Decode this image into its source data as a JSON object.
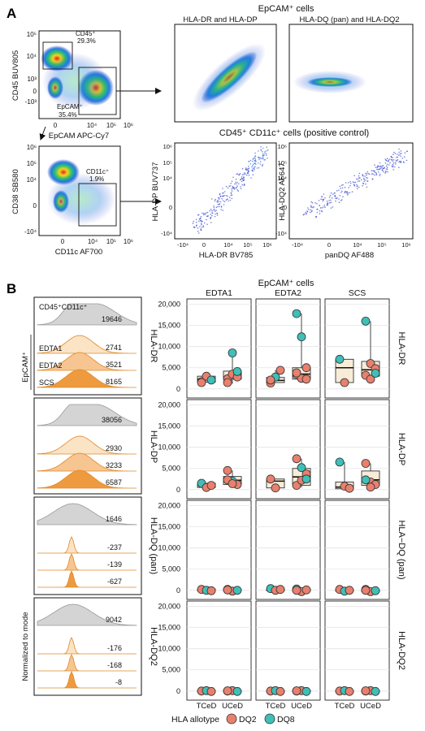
{
  "panels": {
    "A": {
      "letter": "A",
      "gate1": {
        "y_label": "CD45 BUV805",
        "x_label": "EpCAM APC-Cy7",
        "gate_cd45_label": "CD45⁺",
        "gate_cd45_pct": "29.3%",
        "gate_epcam_label": "EpCAM⁺",
        "gate_epcam_pct": "35.4%",
        "y_ticks": [
          "10⁵",
          "10⁴",
          "10³",
          "0",
          "-10³"
        ],
        "x_ticks": [
          "0",
          "10⁴",
          "10⁵",
          "10⁶"
        ]
      },
      "gate2": {
        "y_label": "CD38 SB580",
        "x_label": "CD11c AF700",
        "gate_label": "CD11c⁺",
        "gate_pct": "1.9%",
        "y_ticks": [
          "10⁶",
          "10⁵",
          "10⁴",
          "0",
          "-10⁴"
        ],
        "x_ticks": [
          "0",
          "10⁴",
          "10⁵",
          "10⁶"
        ]
      },
      "epcam_header": "EpCAM⁺ cells",
      "epcam_left_title": "HLA-DR and HLA-DP",
      "epcam_right_title": "HLA-DQ (pan) and HLA-DQ2",
      "control_header": "CD45⁺ CD11c⁺ cells (positive control)",
      "ctrl_left": {
        "y_label": "HLA-DP BUV737",
        "x_label": "HLA-DR BV785",
        "y_ticks": [
          "10⁶",
          "10⁵",
          "10⁴",
          "0",
          "-10⁴"
        ],
        "x_ticks": [
          "-10⁴",
          "0",
          "10⁴",
          "10⁵",
          "10⁶"
        ]
      },
      "ctrl_right": {
        "y_label": "HLA-DQ2 AF647",
        "x_label": "panDQ AF488",
        "y_ticks": [
          "10⁶",
          "10⁵",
          "10⁴",
          "0",
          "-10⁴"
        ],
        "x_ticks": [
          "-10⁴",
          "0",
          "10⁴",
          "10⁵",
          "10⁶"
        ]
      }
    },
    "B": {
      "letter": "B",
      "histogram_legend_top": "CD45⁺CD11c⁺",
      "histogram_group_label": "EpCAM⁺",
      "histogram_rows": [
        "EDTA1",
        "EDTA2",
        "SCS"
      ],
      "histogram_y_label": "Normalized to mode",
      "histograms": [
        {
          "marker": "HLA-DR",
          "mfi": [
            "19646",
            "2741",
            "3521",
            "8165"
          ]
        },
        {
          "marker": "HLA-DP",
          "mfi": [
            "38056",
            "2930",
            "3233",
            "6587"
          ]
        },
        {
          "marker": "HLA-DQ (pan)",
          "mfi": [
            "1646",
            "-237",
            "-139",
            "-627"
          ]
        },
        {
          "marker": "HLA-DQ2",
          "mfi": [
            "9042",
            "-176",
            "-168",
            "-8"
          ]
        }
      ],
      "boxplot_header": "EpCAM⁺ cells",
      "legend_title": "HLA allotype",
      "legend_items": [
        {
          "label": "DQ2",
          "color": "#e8806e"
        },
        {
          "label": "DQ8",
          "color": "#3fbfb8"
        }
      ]
    }
  },
  "chart_data": {
    "type": "box",
    "facet_columns": [
      "EDTA1",
      "EDTA2",
      "SCS"
    ],
    "facet_rows": [
      "HLA-DR",
      "HLA-DP",
      "HLA−DQ (pan)",
      "HLA-DQ2"
    ],
    "categories": [
      "TCeD",
      "UCeD"
    ],
    "y_ticks": [
      "20,000",
      "15,000",
      "10,000",
      "5,000",
      "0"
    ],
    "ylim": [
      -1000,
      20500
    ],
    "colors": {
      "DQ2": "#e8806e",
      "DQ8": "#3fbfb8",
      "box_fill": "#f8ecd8"
    },
    "panels": [
      [
        [
          {
            "q1": 1600,
            "med": 2300,
            "q3": 3000,
            "lo": 1500,
            "hi": 3200,
            "pts": [
              [
                1700,
                "DQ2"
              ],
              [
                3000,
                "DQ2"
              ],
              [
                2100,
                "DQ8"
              ],
              [
                1500,
                "DQ2"
              ]
            ]
          },
          {
            "q1": 2300,
            "med": 2800,
            "q3": 4200,
            "lo": 1200,
            "hi": 8500,
            "pts": [
              [
                2400,
                "DQ2"
              ],
              [
                3500,
                "DQ2"
              ],
              [
                2800,
                "DQ2"
              ],
              [
                1500,
                "DQ2"
              ],
              [
                8500,
                "DQ8"
              ],
              [
                4100,
                "DQ8"
              ]
            ]
          }
        ],
        [
          {
            "q1": 1500,
            "med": 2000,
            "q3": 2700,
            "lo": 1400,
            "hi": 4400,
            "pts": [
              [
                1400,
                "DQ2"
              ],
              [
                2800,
                "DQ8"
              ],
              [
                4400,
                "DQ2"
              ],
              [
                2100,
                "DQ2"
              ]
            ]
          },
          {
            "q1": 2300,
            "med": 3500,
            "q3": 5000,
            "lo": 2000,
            "hi": 17800,
            "pts": [
              [
                17800,
                "DQ8"
              ],
              [
                12300,
                "DQ8"
              ],
              [
                5000,
                "DQ2"
              ],
              [
                3400,
                "DQ2"
              ],
              [
                2500,
                "DQ2"
              ],
              [
                2300,
                "DQ2"
              ],
              [
                3800,
                "DQ2"
              ]
            ]
          }
        ],
        [
          {
            "q1": 1500,
            "med": 5000,
            "q3": 7000,
            "lo": 1500,
            "hi": 7000,
            "pts": [
              [
                7000,
                "DQ8"
              ],
              [
                1500,
                "DQ2"
              ]
            ]
          },
          {
            "q1": 3000,
            "med": 4500,
            "q3": 6500,
            "lo": 2000,
            "hi": 16000,
            "pts": [
              [
                16000,
                "DQ8"
              ],
              [
                6000,
                "DQ2"
              ],
              [
                4800,
                "DQ2"
              ],
              [
                3200,
                "DQ2"
              ],
              [
                2300,
                "DQ2"
              ],
              [
                3700,
                "DQ8"
              ]
            ]
          }
        ]
      ],
      [
        [
          {
            "q1": 500,
            "med": 1000,
            "q3": 1500,
            "lo": 500,
            "hi": 1500,
            "pts": [
              [
                1500,
                "DQ8"
              ],
              [
                500,
                "DQ2"
              ],
              [
                1000,
                "DQ2"
              ]
            ]
          },
          {
            "q1": 1200,
            "med": 2200,
            "q3": 3100,
            "lo": 1000,
            "hi": 4500,
            "pts": [
              [
                4500,
                "DQ2"
              ],
              [
                2000,
                "DQ8"
              ],
              [
                1200,
                "DQ2"
              ],
              [
                2300,
                "DQ2"
              ],
              [
                1400,
                "DQ2"
              ]
            ]
          }
        ],
        [
          {
            "q1": 400,
            "med": 2000,
            "q3": 2500,
            "lo": 400,
            "hi": 2500,
            "pts": [
              [
                2500,
                "DQ2"
              ],
              [
                400,
                "DQ2"
              ]
            ]
          },
          {
            "q1": 1000,
            "med": 3000,
            "q3": 5000,
            "lo": 500,
            "hi": 7300,
            "pts": [
              [
                7300,
                "DQ2"
              ],
              [
                5200,
                "DQ8"
              ],
              [
                3700,
                "DQ2"
              ],
              [
                1000,
                "DQ2"
              ],
              [
                2200,
                "DQ2"
              ],
              [
                2500,
                "DQ8"
              ]
            ]
          }
        ],
        [
          {
            "q1": 200,
            "med": 600,
            "q3": 1800,
            "lo": 200,
            "hi": 6500,
            "pts": [
              [
                6500,
                "DQ8"
              ],
              [
                800,
                "DQ2"
              ],
              [
                300,
                "DQ2"
              ]
            ]
          },
          {
            "q1": 1000,
            "med": 2300,
            "q3": 4400,
            "lo": 500,
            "hi": 6200,
            "pts": [
              [
                6200,
                "DQ2"
              ],
              [
                1800,
                "DQ2"
              ],
              [
                1200,
                "DQ2"
              ],
              [
                2300,
                "DQ8"
              ],
              [
                600,
                "DQ2"
              ]
            ]
          }
        ]
      ],
      [
        [
          {
            "q1": -100,
            "med": 100,
            "q3": 300,
            "lo": -200,
            "hi": 400,
            "pts": [
              [
                200,
                "DQ2"
              ],
              [
                0,
                "DQ8"
              ],
              [
                -100,
                "DQ2"
              ]
            ]
          },
          {
            "q1": -100,
            "med": 0,
            "q3": 200,
            "lo": -300,
            "hi": 300,
            "pts": [
              [
                200,
                "DQ2"
              ],
              [
                -200,
                "DQ2"
              ],
              [
                0,
                "DQ8"
              ],
              [
                100,
                "DQ2"
              ]
            ]
          }
        ],
        [
          {
            "q1": -100,
            "med": 200,
            "q3": 400,
            "lo": -200,
            "hi": 500,
            "pts": [
              [
                400,
                "DQ8"
              ],
              [
                0,
                "DQ2"
              ],
              [
                200,
                "DQ2"
              ]
            ]
          },
          {
            "q1": -200,
            "med": 100,
            "q3": 300,
            "lo": -400,
            "hi": 400,
            "pts": [
              [
                300,
                "DQ8"
              ],
              [
                -300,
                "DQ2"
              ],
              [
                100,
                "DQ2"
              ],
              [
                0,
                "DQ2"
              ]
            ]
          }
        ],
        [
          {
            "q1": -200,
            "med": 0,
            "q3": 200,
            "lo": -300,
            "hi": 300,
            "pts": [
              [
                200,
                "DQ2"
              ],
              [
                -200,
                "DQ8"
              ],
              [
                0,
                "DQ2"
              ]
            ]
          },
          {
            "q1": -300,
            "med": -100,
            "q3": 100,
            "lo": -500,
            "hi": 300,
            "pts": [
              [
                200,
                "DQ2"
              ],
              [
                -300,
                "DQ2"
              ],
              [
                -100,
                "DQ8"
              ],
              [
                0,
                "DQ2"
              ]
            ]
          }
        ]
      ],
      [
        [
          {
            "q1": -100,
            "med": 0,
            "q3": 100,
            "lo": -200,
            "hi": 200,
            "pts": [
              [
                0,
                "DQ2"
              ],
              [
                100,
                "DQ8"
              ],
              [
                -100,
                "DQ2"
              ]
            ]
          },
          {
            "q1": -100,
            "med": 0,
            "q3": 100,
            "lo": -200,
            "hi": 200,
            "pts": [
              [
                0,
                "DQ2"
              ],
              [
                100,
                "DQ2"
              ],
              [
                -100,
                "DQ8"
              ],
              [
                50,
                "DQ2"
              ]
            ]
          }
        ],
        [
          {
            "q1": -100,
            "med": 0,
            "q3": 100,
            "lo": -200,
            "hi": 200,
            "pts": [
              [
                0,
                "DQ2"
              ],
              [
                100,
                "DQ8"
              ],
              [
                -100,
                "DQ2"
              ]
            ]
          },
          {
            "q1": -100,
            "med": 0,
            "q3": 100,
            "lo": -200,
            "hi": 200,
            "pts": [
              [
                0,
                "DQ2"
              ],
              [
                100,
                "DQ2"
              ],
              [
                -100,
                "DQ8"
              ],
              [
                50,
                "DQ2"
              ]
            ]
          }
        ],
        [
          {
            "q1": -100,
            "med": 0,
            "q3": 100,
            "lo": -200,
            "hi": 200,
            "pts": [
              [
                0,
                "DQ2"
              ],
              [
                100,
                "DQ8"
              ],
              [
                -100,
                "DQ2"
              ]
            ]
          },
          {
            "q1": -100,
            "med": 0,
            "q3": 100,
            "lo": -200,
            "hi": 200,
            "pts": [
              [
                0,
                "DQ2"
              ],
              [
                100,
                "DQ2"
              ],
              [
                -100,
                "DQ8"
              ],
              [
                50,
                "DQ2"
              ]
            ]
          }
        ]
      ]
    ]
  }
}
